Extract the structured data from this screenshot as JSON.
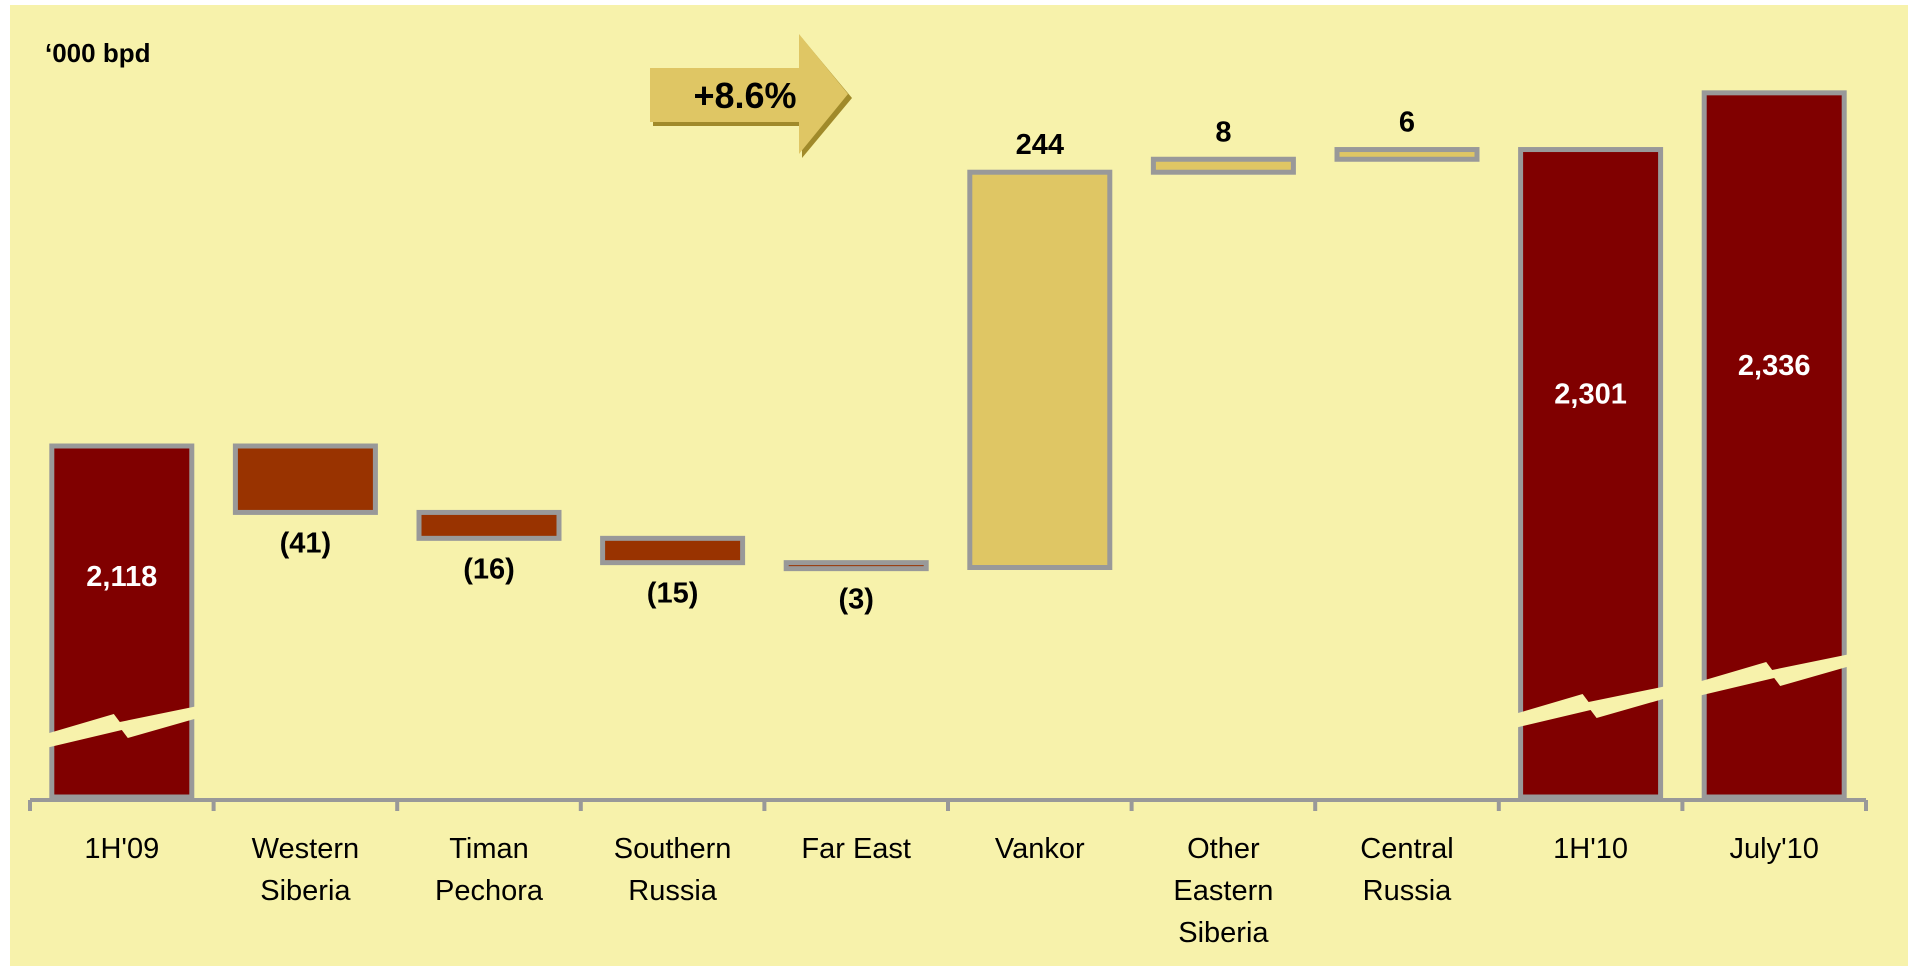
{
  "unit_label": "‘000 bpd",
  "callout_label": "+8.6%",
  "colors": {
    "background": "#f7f2ab",
    "total": "#800000",
    "decrease": "#993300",
    "increase": "#dfc664",
    "outline": "#999999",
    "callout": "#dfc664"
  },
  "chart_data": {
    "type": "bar",
    "subtype": "waterfall",
    "ylabel": "‘000 bpd",
    "axis_break": true,
    "categories": [
      [
        "1H'09"
      ],
      [
        "Western",
        "Siberia"
      ],
      [
        "Timan",
        "Pechora"
      ],
      [
        "Southern",
        "Russia"
      ],
      [
        "Far East"
      ],
      [
        "Vankor"
      ],
      [
        "Other",
        "Eastern",
        "Siberia"
      ],
      [
        "Central",
        "Russia"
      ],
      [
        "1H'10"
      ],
      [
        "July'10"
      ]
    ],
    "bars": [
      {
        "kind": "total",
        "value": 2118,
        "label": "2,118"
      },
      {
        "kind": "decrease",
        "value": -41,
        "label": "(41)"
      },
      {
        "kind": "decrease",
        "value": -16,
        "label": "(16)"
      },
      {
        "kind": "decrease",
        "value": -15,
        "label": "(15)"
      },
      {
        "kind": "decrease",
        "value": -3,
        "label": "(3)"
      },
      {
        "kind": "increase",
        "value": 244,
        "label": "244"
      },
      {
        "kind": "increase",
        "value": 8,
        "label": "8"
      },
      {
        "kind": "increase",
        "value": 6,
        "label": "6"
      },
      {
        "kind": "total",
        "value": 2301,
        "label": "2,301"
      },
      {
        "kind": "total",
        "value": 2336,
        "label": "2,336"
      }
    ]
  }
}
